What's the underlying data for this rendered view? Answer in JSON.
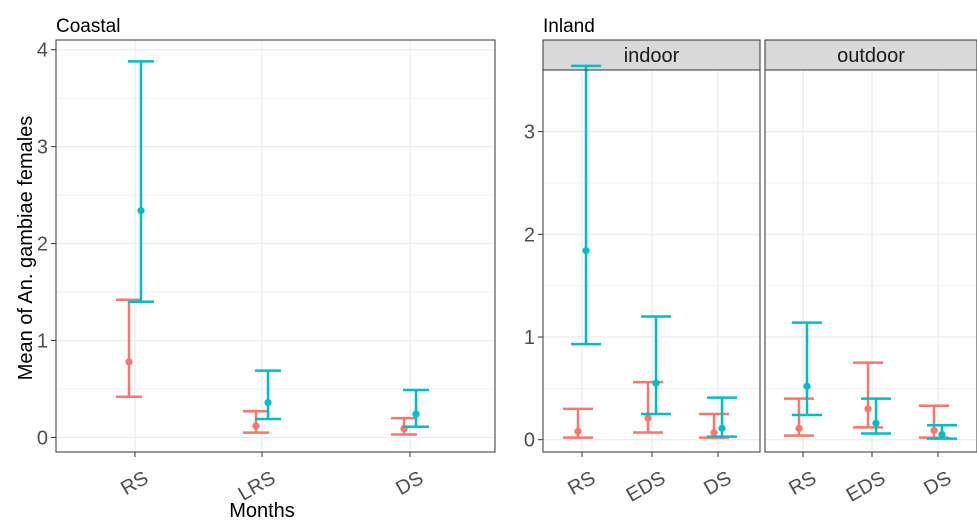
{
  "chart_data": [
    {
      "type": "errorbar",
      "title": "Coastal",
      "xlabel": "Months",
      "ylabel": "Mean of An. gambiae females",
      "ylim": [
        -0.15,
        4.1
      ],
      "y_ticks": [
        "0",
        "1",
        "2",
        "3",
        "4"
      ],
      "grid": true,
      "legend": "none",
      "series_colors": [
        "#f8766d",
        "#00bfc4"
      ],
      "panels": [
        {
          "strip": "",
          "categories": [
            "RS",
            "LRS",
            "DS"
          ],
          "series": [
            {
              "color": "#f8766d",
              "points": [
                {
                  "x": "RS",
                  "mean": 0.78,
                  "lower": 0.42,
                  "upper": 1.42
                },
                {
                  "x": "LRS",
                  "mean": 0.12,
                  "lower": 0.05,
                  "upper": 0.27
                },
                {
                  "x": "DS",
                  "mean": 0.09,
                  "lower": 0.03,
                  "upper": 0.2
                }
              ]
            },
            {
              "color": "#00bfc4",
              "points": [
                {
                  "x": "RS",
                  "mean": 2.34,
                  "lower": 1.4,
                  "upper": 3.88
                },
                {
                  "x": "LRS",
                  "mean": 0.36,
                  "lower": 0.19,
                  "upper": 0.69
                },
                {
                  "x": "DS",
                  "mean": 0.24,
                  "lower": 0.11,
                  "upper": 0.49
                }
              ]
            }
          ]
        }
      ]
    },
    {
      "type": "errorbar",
      "title": "Inland",
      "xlabel": "",
      "ylabel": "",
      "ylim": [
        -0.12,
        3.6
      ],
      "y_ticks": [
        "0",
        "1",
        "2",
        "3"
      ],
      "grid": true,
      "legend": "none",
      "series_colors": [
        "#f8766d",
        "#00bfc4"
      ],
      "panels": [
        {
          "strip": "indoor",
          "categories": [
            "RS",
            "EDS",
            "DS"
          ],
          "series": [
            {
              "color": "#f8766d",
              "points": [
                {
                  "x": "RS",
                  "mean": 0.08,
                  "lower": 0.02,
                  "upper": 0.3
                },
                {
                  "x": "EDS",
                  "mean": 0.21,
                  "lower": 0.07,
                  "upper": 0.56
                },
                {
                  "x": "DS",
                  "mean": 0.07,
                  "lower": 0.02,
                  "upper": 0.25
                }
              ]
            },
            {
              "color": "#00bfc4",
              "points": [
                {
                  "x": "RS",
                  "mean": 1.84,
                  "lower": 0.93,
                  "upper": 3.64
                },
                {
                  "x": "EDS",
                  "mean": 0.55,
                  "lower": 0.25,
                  "upper": 1.2
                },
                {
                  "x": "DS",
                  "mean": 0.11,
                  "lower": 0.03,
                  "upper": 0.41
                }
              ]
            }
          ]
        },
        {
          "strip": "outdoor",
          "categories": [
            "RS",
            "EDS",
            "DS"
          ],
          "series": [
            {
              "color": "#f8766d",
              "points": [
                {
                  "x": "RS",
                  "mean": 0.11,
                  "lower": 0.04,
                  "upper": 0.4
                },
                {
                  "x": "EDS",
                  "mean": 0.3,
                  "lower": 0.12,
                  "upper": 0.75
                },
                {
                  "x": "DS",
                  "mean": 0.09,
                  "lower": 0.02,
                  "upper": 0.33
                }
              ]
            },
            {
              "color": "#00bfc4",
              "points": [
                {
                  "x": "RS",
                  "mean": 0.52,
                  "lower": 0.24,
                  "upper": 1.14
                },
                {
                  "x": "EDS",
                  "mean": 0.16,
                  "lower": 0.06,
                  "upper": 0.4
                },
                {
                  "x": "DS",
                  "mean": 0.05,
                  "lower": 0.01,
                  "upper": 0.14
                }
              ]
            }
          ]
        }
      ]
    }
  ]
}
